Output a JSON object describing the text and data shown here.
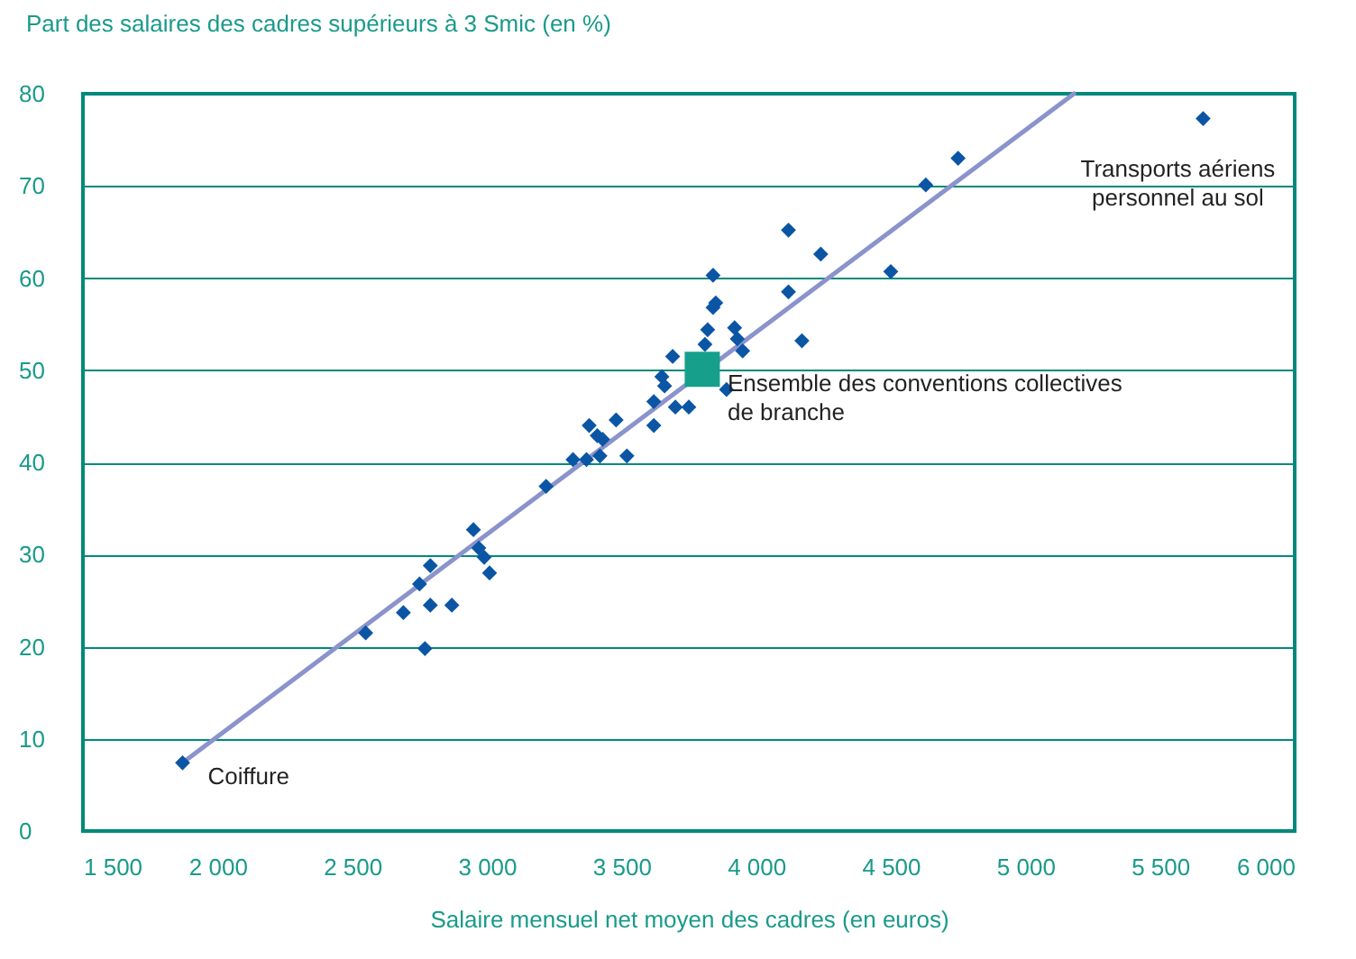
{
  "chart_data": {
    "type": "scatter",
    "xlabel": "Salaire mensuel net moyen des cadres (en euros)",
    "ylabel": "Part des salaires des cadres supérieurs à 3 Smic (en %)",
    "xlim": [
      1500,
      6000
    ],
    "xticks": [
      {
        "value": 1500,
        "label": "1 500"
      },
      {
        "value": 2000,
        "label": "2 000"
      },
      {
        "value": 2500,
        "label": "2 500"
      },
      {
        "value": 3000,
        "label": "3 000"
      },
      {
        "value": 3500,
        "label": "3 500"
      },
      {
        "value": 4000,
        "label": "4 000"
      },
      {
        "value": 4500,
        "label": "4 500"
      },
      {
        "value": 5000,
        "label": "5 000"
      },
      {
        "value": 5500,
        "label": "5 500"
      },
      {
        "value": 6000,
        "label": "6 000"
      }
    ],
    "ylim": [
      0,
      80
    ],
    "yticks": [
      0,
      10,
      20,
      30,
      40,
      50,
      60,
      70,
      80
    ],
    "grid": "y",
    "series": [
      {
        "type": "line",
        "color": "#8a93cc",
        "x": [
          1870,
          5180
        ],
        "values": [
          7.4,
          80
        ]
      },
      {
        "marker": "diamond",
        "color": "#0b55a5",
        "x": [
          1870,
          2550,
          2690,
          2750,
          2790,
          2770,
          2790,
          2870,
          2950,
          2970,
          2990,
          3010,
          3220,
          3840,
          3850,
          3840,
          3820,
          3920,
          3810,
          3930,
          3950,
          3690,
          3890,
          3650,
          3660,
          3620,
          3700,
          3750,
          3620,
          3380,
          3480,
          3410,
          3430,
          3320,
          3370,
          3420,
          3520,
          4750,
          4630,
          4120,
          4240,
          4500,
          4120,
          4170,
          5660
        ],
        "values": [
          7.4,
          21.5,
          23.7,
          26.8,
          28.8,
          19.8,
          24.5,
          24.5,
          32.7,
          30.7,
          29.7,
          28.0,
          37.4,
          60.3,
          57.3,
          56.8,
          54.4,
          54.6,
          52.8,
          53.4,
          52.1,
          51.5,
          47.9,
          49.3,
          48.3,
          46.6,
          46.0,
          46.0,
          44.0,
          44.0,
          44.6,
          42.9,
          42.5,
          40.3,
          40.3,
          40.7,
          40.7,
          73.0,
          70.1,
          65.2,
          62.6,
          60.7,
          58.5,
          53.2,
          77.3
        ]
      },
      {
        "marker": "square",
        "color": "#16a08c",
        "x": [
          3800
        ],
        "values": [
          50.1
        ]
      }
    ],
    "annotations": [
      {
        "text": "Coiffure",
        "x": 1870,
        "y": 7.4
      },
      {
        "text": "Ensemble des conventions collectives\nde branche",
        "x": 3800,
        "y": 50.1
      },
      {
        "text": "Transports aériens\npersonnel au sol",
        "x": 5660,
        "y": 77.3
      }
    ]
  }
}
